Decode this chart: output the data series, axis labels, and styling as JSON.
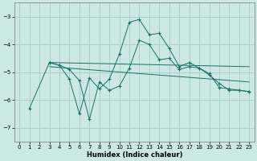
{
  "xlabel": "Humidex (Indice chaleur)",
  "bg_color": "#cce8e4",
  "grid_color": "#aacfcc",
  "line_color": "#1a7068",
  "xlim": [
    -0.5,
    23.5
  ],
  "ylim": [
    -7.5,
    -2.5
  ],
  "yticks": [
    -7,
    -6,
    -5,
    -4,
    -3
  ],
  "xticks": [
    0,
    1,
    2,
    3,
    4,
    5,
    6,
    7,
    8,
    9,
    10,
    11,
    12,
    13,
    14,
    15,
    16,
    17,
    18,
    19,
    20,
    21,
    22,
    23
  ],
  "series": [
    {
      "x": [
        1,
        3,
        4,
        5,
        6,
        7,
        8,
        9,
        10,
        11,
        12,
        13,
        14,
        15,
        16,
        17,
        18,
        19,
        20,
        21,
        22,
        23
      ],
      "y": [
        -6.3,
        -4.65,
        -4.75,
        -5.25,
        -6.5,
        -5.2,
        -5.6,
        -5.25,
        -4.35,
        -3.2,
        -3.1,
        -3.65,
        -3.6,
        -4.15,
        -4.8,
        -4.65,
        -4.85,
        -5.05,
        -5.55,
        -5.6,
        -5.65,
        -5.7
      ],
      "has_marker": true
    },
    {
      "x": [
        3,
        4,
        5,
        6,
        7,
        8,
        9,
        10,
        11,
        12,
        13,
        14,
        15,
        16,
        17,
        18,
        19,
        20,
        21,
        22,
        23
      ],
      "y": [
        -4.65,
        -4.75,
        -4.9,
        -5.3,
        -6.7,
        -5.35,
        -5.65,
        -5.5,
        -4.85,
        -3.85,
        -4.0,
        -4.55,
        -4.5,
        -4.9,
        -4.8,
        -4.85,
        -5.1,
        -5.4,
        -5.65,
        -5.65,
        -5.7
      ],
      "has_marker": true
    },
    {
      "x": [
        3,
        23
      ],
      "y": [
        -4.65,
        -4.8
      ],
      "has_marker": false
    },
    {
      "x": [
        3,
        23
      ],
      "y": [
        -4.8,
        -5.35
      ],
      "has_marker": false
    }
  ]
}
